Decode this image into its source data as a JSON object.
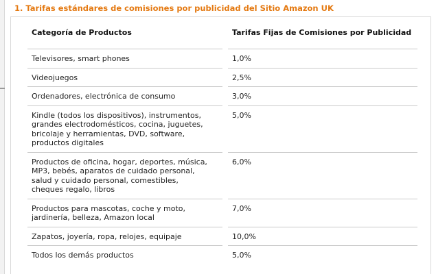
{
  "section_title": "1. Tarifas estándares de comisiones por publicidad del Sitio Amazon UK",
  "table": {
    "headers": {
      "category": "Categoría de Productos",
      "rate": "Tarifas Fijas de Comisiones por Publicidad"
    },
    "rows": [
      {
        "category": "Televisores, smart phones",
        "rate": "1,0%"
      },
      {
        "category": "Videojuegos",
        "rate": "2,5%"
      },
      {
        "category": "Ordenadores, electrónica de consumo",
        "rate": "3,0%"
      },
      {
        "category": "Kindle (todos los dispositivos), instrumentos,\ngrandes electrodomésticos, cocina, juguetes,\nbricolaje y herramientas, DVD, software,\nproductos digitales",
        "rate": "5,0%"
      },
      {
        "category": "Productos de oficina, hogar, deportes, música,\nMP3, bebés, aparatos de cuidado personal,\nsalud y cuidado personal, comestibles,\ncheques regalo, libros",
        "rate": "6,0%"
      },
      {
        "category": "Productos para mascotas, coche y moto,\njardinería, belleza, Amazon local",
        "rate": "7,0%"
      },
      {
        "category": "Zapatos, joyería, ropa, relojes, equipaje",
        "rate": "10,0%"
      },
      {
        "category": "Todos los demás productos",
        "rate": "5,0%"
      }
    ]
  },
  "colors": {
    "title": "#e47911",
    "text": "#222222",
    "rule": "#c8c8c8"
  }
}
